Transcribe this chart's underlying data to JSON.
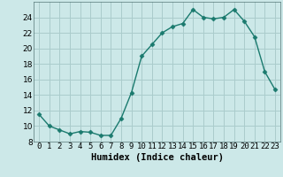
{
  "x": [
    0,
    1,
    2,
    3,
    4,
    5,
    6,
    7,
    8,
    9,
    10,
    11,
    12,
    13,
    14,
    15,
    16,
    17,
    18,
    19,
    20,
    21,
    22,
    23
  ],
  "y": [
    11.5,
    10.0,
    9.5,
    9.0,
    9.3,
    9.2,
    8.8,
    8.8,
    11.0,
    14.3,
    19.0,
    20.5,
    22.0,
    22.8,
    23.2,
    25.0,
    24.0,
    23.8,
    24.0,
    25.0,
    23.5,
    21.5,
    17.0,
    14.7
  ],
  "title": "",
  "xlabel": "Humidex (Indice chaleur)",
  "ylabel": "",
  "line_color": "#1a7a6e",
  "marker": "D",
  "marker_size": 2.5,
  "bg_color": "#cce8e8",
  "grid_color": "#aacccc",
  "ylim": [
    8,
    26
  ],
  "xlim": [
    -0.5,
    23.5
  ],
  "yticks": [
    8,
    10,
    12,
    14,
    16,
    18,
    20,
    22,
    24
  ],
  "xticks": [
    0,
    1,
    2,
    3,
    4,
    5,
    6,
    7,
    8,
    9,
    10,
    11,
    12,
    13,
    14,
    15,
    16,
    17,
    18,
    19,
    20,
    21,
    22,
    23
  ],
  "xlabel_fontsize": 7.5,
  "tick_fontsize": 6.5,
  "linewidth": 1.0
}
